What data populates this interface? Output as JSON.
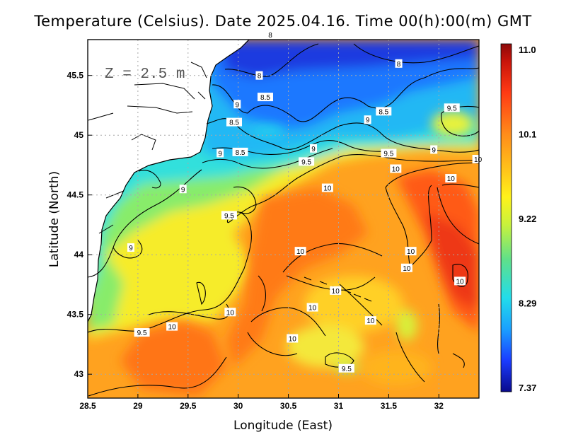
{
  "title": "Temperature (Celsius). Date 2025.04.16. Time 00(h):00(m) GMT",
  "depth_label": "Z = 2.5 m",
  "x_label": "Longitude (East)",
  "y_label": "Latitude (North)",
  "x_ticks": [
    "28.5",
    "29",
    "29.5",
    "30",
    "30.5",
    "31",
    "31.5",
    "32"
  ],
  "y_ticks": [
    "45.5",
    "45",
    "44.5",
    "44",
    "43.5",
    "43"
  ],
  "colorbar": {
    "ticks": [
      "11.0",
      "10.1",
      "9.22",
      "8.29",
      "7.37"
    ],
    "colors": [
      "#0a0a8c",
      "#1a3cff",
      "#1aa0ff",
      "#22ddea",
      "#5fe08a",
      "#c8f23c",
      "#fff21a",
      "#ffc21a",
      "#ff8c1a",
      "#ff3a14",
      "#c8140a",
      "#8c0a0a"
    ]
  },
  "contour_labels": [
    {
      "text": "8",
      "lon": 30.32,
      "lat": 45.84
    },
    {
      "text": "8",
      "lon": 31.6,
      "lat": 45.6
    },
    {
      "text": "8",
      "lon": 30.21,
      "lat": 45.5
    },
    {
      "text": "8.5",
      "lon": 30.27,
      "lat": 45.32
    },
    {
      "text": "8.5",
      "lon": 31.45,
      "lat": 45.2
    },
    {
      "text": "8.5",
      "lon": 29.96,
      "lat": 45.11
    },
    {
      "text": "8.5",
      "lon": 30.02,
      "lat": 44.86
    },
    {
      "text": "9",
      "lon": 29.99,
      "lat": 45.26
    },
    {
      "text": "9",
      "lon": 31.29,
      "lat": 45.13
    },
    {
      "text": "9",
      "lon": 30.75,
      "lat": 44.89
    },
    {
      "text": "9",
      "lon": 31.95,
      "lat": 44.88
    },
    {
      "text": "9",
      "lon": 29.82,
      "lat": 44.85
    },
    {
      "text": "9",
      "lon": 29.45,
      "lat": 44.55
    },
    {
      "text": "9",
      "lon": 28.93,
      "lat": 44.06
    },
    {
      "text": "9.5",
      "lon": 32.13,
      "lat": 45.23
    },
    {
      "text": "9.5",
      "lon": 31.5,
      "lat": 44.85
    },
    {
      "text": "9.5",
      "lon": 30.68,
      "lat": 44.78
    },
    {
      "text": "9.5",
      "lon": 29.91,
      "lat": 44.33
    },
    {
      "text": "9.5",
      "lon": 29.04,
      "lat": 43.35
    },
    {
      "text": "9.5",
      "lon": 31.08,
      "lat": 43.05
    },
    {
      "text": "10",
      "lon": 31.57,
      "lat": 44.72
    },
    {
      "text": "10",
      "lon": 32.39,
      "lat": 44.8
    },
    {
      "text": "10",
      "lon": 32.12,
      "lat": 44.64
    },
    {
      "text": "10",
      "lon": 30.89,
      "lat": 44.56
    },
    {
      "text": "10",
      "lon": 30.62,
      "lat": 44.03
    },
    {
      "text": "10",
      "lon": 31.72,
      "lat": 44.03
    },
    {
      "text": "10",
      "lon": 31.68,
      "lat": 43.89
    },
    {
      "text": "10",
      "lon": 32.21,
      "lat": 43.78
    },
    {
      "text": "10",
      "lon": 30.97,
      "lat": 43.7
    },
    {
      "text": "10",
      "lon": 30.74,
      "lat": 43.56
    },
    {
      "text": "10",
      "lon": 29.92,
      "lat": 43.52
    },
    {
      "text": "10",
      "lon": 29.34,
      "lat": 43.4
    },
    {
      "text": "10",
      "lon": 31.32,
      "lat": 43.45
    },
    {
      "text": "10",
      "lon": 30.54,
      "lat": 43.3
    }
  ]
}
